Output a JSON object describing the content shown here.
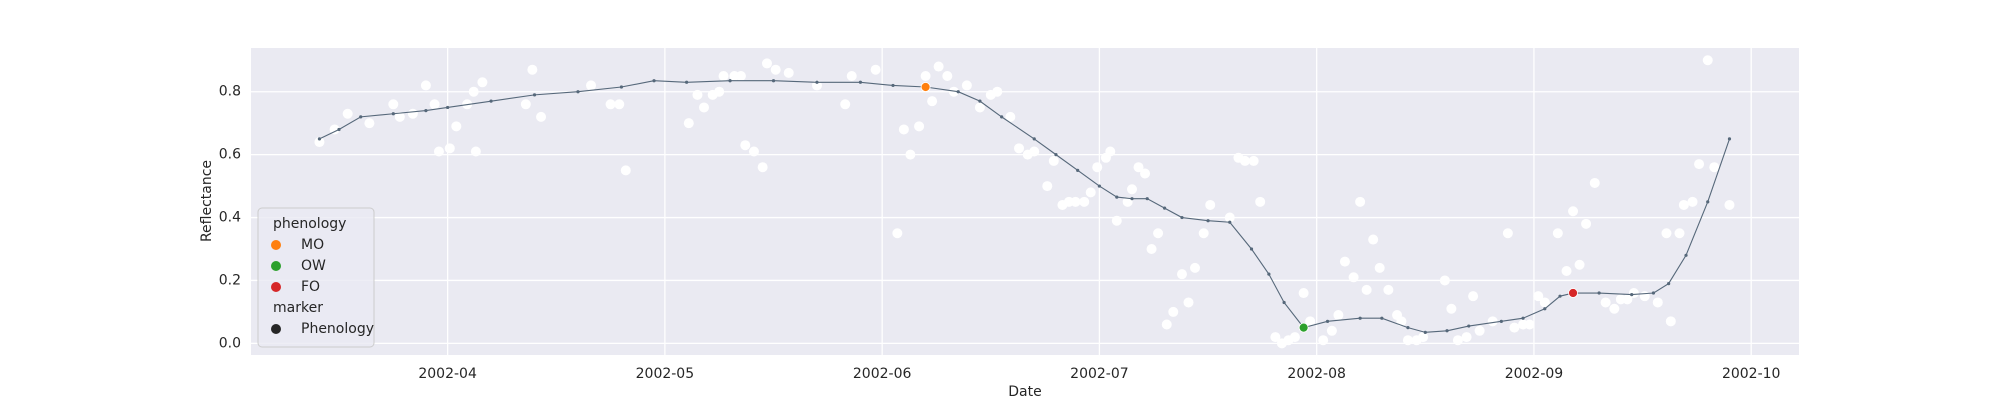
{
  "chart_data": {
    "type": "scatter",
    "xlabel": "Date",
    "ylabel": "Reflectance",
    "xlim": [
      3.095,
      10.22
    ],
    "ylim": [
      -0.037,
      0.939
    ],
    "xticks": [
      {
        "value": 4,
        "label": "2002-04"
      },
      {
        "value": 5,
        "label": "2002-05"
      },
      {
        "value": 6,
        "label": "2002-06"
      },
      {
        "value": 7,
        "label": "2002-07"
      },
      {
        "value": 8,
        "label": "2002-08"
      },
      {
        "value": 9,
        "label": "2002-09"
      },
      {
        "value": 10,
        "label": "2002-10"
      }
    ],
    "yticks": [
      {
        "value": 0,
        "label": "0.0"
      },
      0.2,
      0.4,
      0.6,
      0.8
    ],
    "grid": true,
    "series": [
      {
        "type": "scatter",
        "color": "#ffffff",
        "x": [
          3.41,
          3.48,
          3.54,
          3.64,
          3.75,
          3.78,
          3.84,
          3.9,
          3.94,
          3.96,
          4.01,
          4.04,
          4.09,
          4.12,
          4.13,
          4.16,
          4.36,
          4.39,
          4.43,
          4.66,
          4.75,
          4.79,
          4.82,
          5.11,
          5.15,
          5.18,
          5.22,
          5.25,
          5.27,
          5.32,
          5.35,
          5.37,
          5.41,
          5.45,
          5.47,
          5.51,
          5.57,
          5.7,
          5.83,
          5.86,
          5.97,
          6.07,
          6.1,
          6.13,
          6.17,
          6.2,
          6.23,
          6.26,
          6.3,
          6.33,
          6.39,
          6.45,
          6.5,
          6.53,
          6.59,
          6.63,
          6.67,
          6.7,
          6.76,
          6.79,
          6.83,
          6.86,
          6.89,
          6.93,
          6.96,
          6.99,
          7.03,
          7.05,
          7.08,
          7.13,
          7.15,
          7.18,
          7.21,
          7.24,
          7.27,
          7.31,
          7.34,
          7.38,
          7.41,
          7.44,
          7.48,
          7.51,
          7.6,
          7.64,
          7.67,
          7.71,
          7.74,
          7.81,
          7.84,
          7.87,
          7.9,
          7.94,
          7.97,
          8.03,
          8.07,
          8.1,
          8.13,
          8.17,
          8.2,
          8.23,
          8.26,
          8.29,
          8.33,
          8.37,
          8.39,
          8.42,
          8.46,
          8.49,
          8.59,
          8.62,
          8.65,
          8.69,
          8.72,
          8.75,
          8.81,
          8.88,
          8.91,
          8.95,
          8.98,
          9.02,
          9.05,
          9.11,
          9.15,
          9.18,
          9.21,
          9.24,
          9.28,
          9.33,
          9.37,
          9.4,
          9.43,
          9.46,
          9.51,
          9.57,
          9.61,
          9.63,
          9.67,
          9.69,
          9.73,
          9.76,
          9.8,
          9.83,
          9.9
        ],
        "values": [
          0.64,
          0.68,
          0.73,
          0.7,
          0.76,
          0.72,
          0.73,
          0.82,
          0.76,
          0.61,
          0.62,
          0.69,
          0.76,
          0.8,
          0.61,
          0.83,
          0.76,
          0.87,
          0.72,
          0.82,
          0.76,
          0.76,
          0.55,
          0.7,
          0.79,
          0.75,
          0.79,
          0.8,
          0.85,
          0.85,
          0.85,
          0.63,
          0.61,
          0.56,
          0.89,
          0.87,
          0.86,
          0.82,
          0.76,
          0.85,
          0.87,
          0.35,
          0.68,
          0.6,
          0.69,
          0.85,
          0.77,
          0.88,
          0.85,
          0.8,
          0.82,
          0.75,
          0.79,
          0.8,
          0.72,
          0.62,
          0.6,
          0.61,
          0.5,
          0.58,
          0.44,
          0.45,
          0.45,
          0.45,
          0.48,
          0.56,
          0.59,
          0.61,
          0.39,
          0.45,
          0.49,
          0.56,
          0.54,
          0.3,
          0.35,
          0.06,
          0.1,
          0.22,
          0.13,
          0.24,
          0.35,
          0.44,
          0.4,
          0.59,
          0.58,
          0.58,
          0.45,
          0.02,
          0.0,
          0.01,
          0.02,
          0.16,
          0.07,
          0.01,
          0.04,
          0.09,
          0.26,
          0.21,
          0.45,
          0.17,
          0.33,
          0.24,
          0.17,
          0.09,
          0.07,
          0.01,
          0.01,
          0.02,
          0.2,
          0.11,
          0.01,
          0.02,
          0.15,
          0.04,
          0.07,
          0.35,
          0.05,
          0.06,
          0.06,
          0.15,
          0.13,
          0.35,
          0.23,
          0.42,
          0.25,
          0.38,
          0.51,
          0.13,
          0.11,
          0.14,
          0.14,
          0.16,
          0.15,
          0.13,
          0.35,
          0.07,
          0.35,
          0.44,
          0.45,
          0.57,
          0.9,
          0.56,
          0.44
        ]
      },
      {
        "type": "line",
        "color": "#56687a",
        "x": [
          3.41,
          3.5,
          3.6,
          3.75,
          3.9,
          4.0,
          4.2,
          4.4,
          4.6,
          4.8,
          4.95,
          5.1,
          5.3,
          5.5,
          5.7,
          5.9,
          6.05,
          6.2,
          6.35,
          6.45,
          6.55,
          6.7,
          6.8,
          6.9,
          7.0,
          7.08,
          7.15,
          7.22,
          7.3,
          7.38,
          7.5,
          7.6,
          7.7,
          7.78,
          7.85,
          7.94,
          8.05,
          8.2,
          8.3,
          8.42,
          8.5,
          8.6,
          8.7,
          8.85,
          8.95,
          9.05,
          9.12,
          9.18,
          9.3,
          9.45,
          9.55,
          9.62,
          9.7,
          9.8,
          9.9
        ],
        "values": [
          0.65,
          0.68,
          0.72,
          0.73,
          0.74,
          0.75,
          0.77,
          0.79,
          0.8,
          0.815,
          0.835,
          0.83,
          0.835,
          0.835,
          0.83,
          0.83,
          0.82,
          0.815,
          0.8,
          0.77,
          0.72,
          0.65,
          0.6,
          0.55,
          0.5,
          0.465,
          0.46,
          0.46,
          0.43,
          0.4,
          0.39,
          0.385,
          0.3,
          0.22,
          0.13,
          0.05,
          0.07,
          0.08,
          0.08,
          0.05,
          0.035,
          0.04,
          0.055,
          0.07,
          0.08,
          0.11,
          0.15,
          0.16,
          0.16,
          0.155,
          0.16,
          0.19,
          0.28,
          0.45,
          0.65
        ]
      },
      {
        "type": "scatter",
        "name": "MO",
        "color": "#ff7f0e",
        "x": [
          6.2
        ],
        "values": [
          0.815
        ]
      },
      {
        "type": "scatter",
        "name": "OW",
        "color": "#2ca02c",
        "x": [
          7.94
        ],
        "values": [
          0.05
        ]
      },
      {
        "type": "scatter",
        "name": "FO",
        "color": "#d62728",
        "x": [
          9.18
        ],
        "values": [
          0.16
        ]
      }
    ],
    "legend": {
      "title": "phenology",
      "location": "lower left",
      "marker_title": "marker",
      "marker_label": "Phenology",
      "marker_color": "#262626"
    }
  }
}
